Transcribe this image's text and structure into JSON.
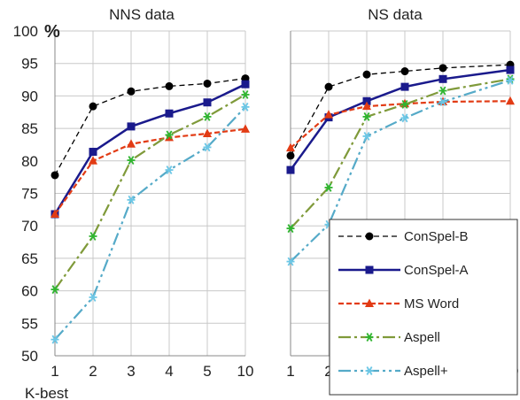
{
  "chart_data": {
    "type": "line",
    "x": [
      "1",
      "2",
      "3",
      "4",
      "5",
      "10"
    ],
    "xlabel": "K-best",
    "ylabel": "%",
    "ylim": [
      50,
      100
    ],
    "yticks": [
      "50",
      "55",
      "60",
      "65",
      "70",
      "75",
      "80",
      "85",
      "90",
      "95",
      "100"
    ],
    "grid": true,
    "legend_position": "bottom-right of second panel",
    "panels": [
      {
        "title": "NNS data",
        "series": [
          {
            "name": "ConSpel-B",
            "values": [
              77.8,
              88.4,
              90.7,
              91.5,
              91.9,
              92.7
            ],
            "color": "#000000",
            "dash": "6,4",
            "marker": "circle",
            "width": 1.3
          },
          {
            "name": "ConSpel-A",
            "values": [
              71.8,
              81.4,
              85.3,
              87.3,
              89.0,
              91.8
            ],
            "color": "#1a1a8c",
            "dash": "",
            "marker": "square",
            "width": 2.5
          },
          {
            "name": "MS Word",
            "values": [
              71.8,
              80.0,
              82.6,
              83.6,
              84.2,
              84.9
            ],
            "color": "#e23b14",
            "dash": "6,3",
            "marker": "triangle",
            "width": 2.2
          },
          {
            "name": "Aspell",
            "values": [
              60.2,
              68.4,
              80.1,
              84.0,
              86.8,
              90.2
            ],
            "color": "#7f9a3a",
            "dash": "14,4,3,4",
            "marker": "star-green",
            "width": 2.2
          },
          {
            "name": "Aspell+",
            "values": [
              52.5,
              59.0,
              74.0,
              78.6,
              82.1,
              88.3
            ],
            "color": "#55aac8",
            "dash": "14,4,3,4,3,4",
            "marker": "star-blue",
            "width": 2.2
          }
        ]
      },
      {
        "title": "NS data",
        "series": [
          {
            "name": "ConSpel-B",
            "values": [
              80.8,
              91.4,
              93.3,
              93.8,
              94.3,
              94.8
            ],
            "color": "#000000",
            "dash": "6,4",
            "marker": "circle",
            "width": 1.3
          },
          {
            "name": "ConSpel-A",
            "values": [
              78.6,
              86.7,
              89.2,
              91.4,
              92.6,
              94.0
            ],
            "color": "#1a1a8c",
            "dash": "",
            "marker": "square",
            "width": 2.5
          },
          {
            "name": "MS Word",
            "values": [
              82.0,
              87.1,
              88.4,
              88.8,
              89.1,
              89.2
            ],
            "color": "#e23b14",
            "dash": "6,3",
            "marker": "triangle",
            "width": 2.2
          },
          {
            "name": "Aspell",
            "values": [
              69.6,
              75.9,
              86.8,
              88.7,
              90.8,
              92.6
            ],
            "color": "#7f9a3a",
            "dash": "14,4,3,4",
            "marker": "star-green",
            "width": 2.2
          },
          {
            "name": "Aspell+",
            "values": [
              64.5,
              70.2,
              83.8,
              86.6,
              89.1,
              92.4
            ],
            "color": "#55aac8",
            "dash": "14,4,3,4,3,4",
            "marker": "star-blue",
            "width": 2.2
          }
        ]
      }
    ],
    "legend": [
      "ConSpel-B",
      "ConSpel-A",
      "MS Word",
      "Aspell",
      "Aspell+"
    ]
  }
}
